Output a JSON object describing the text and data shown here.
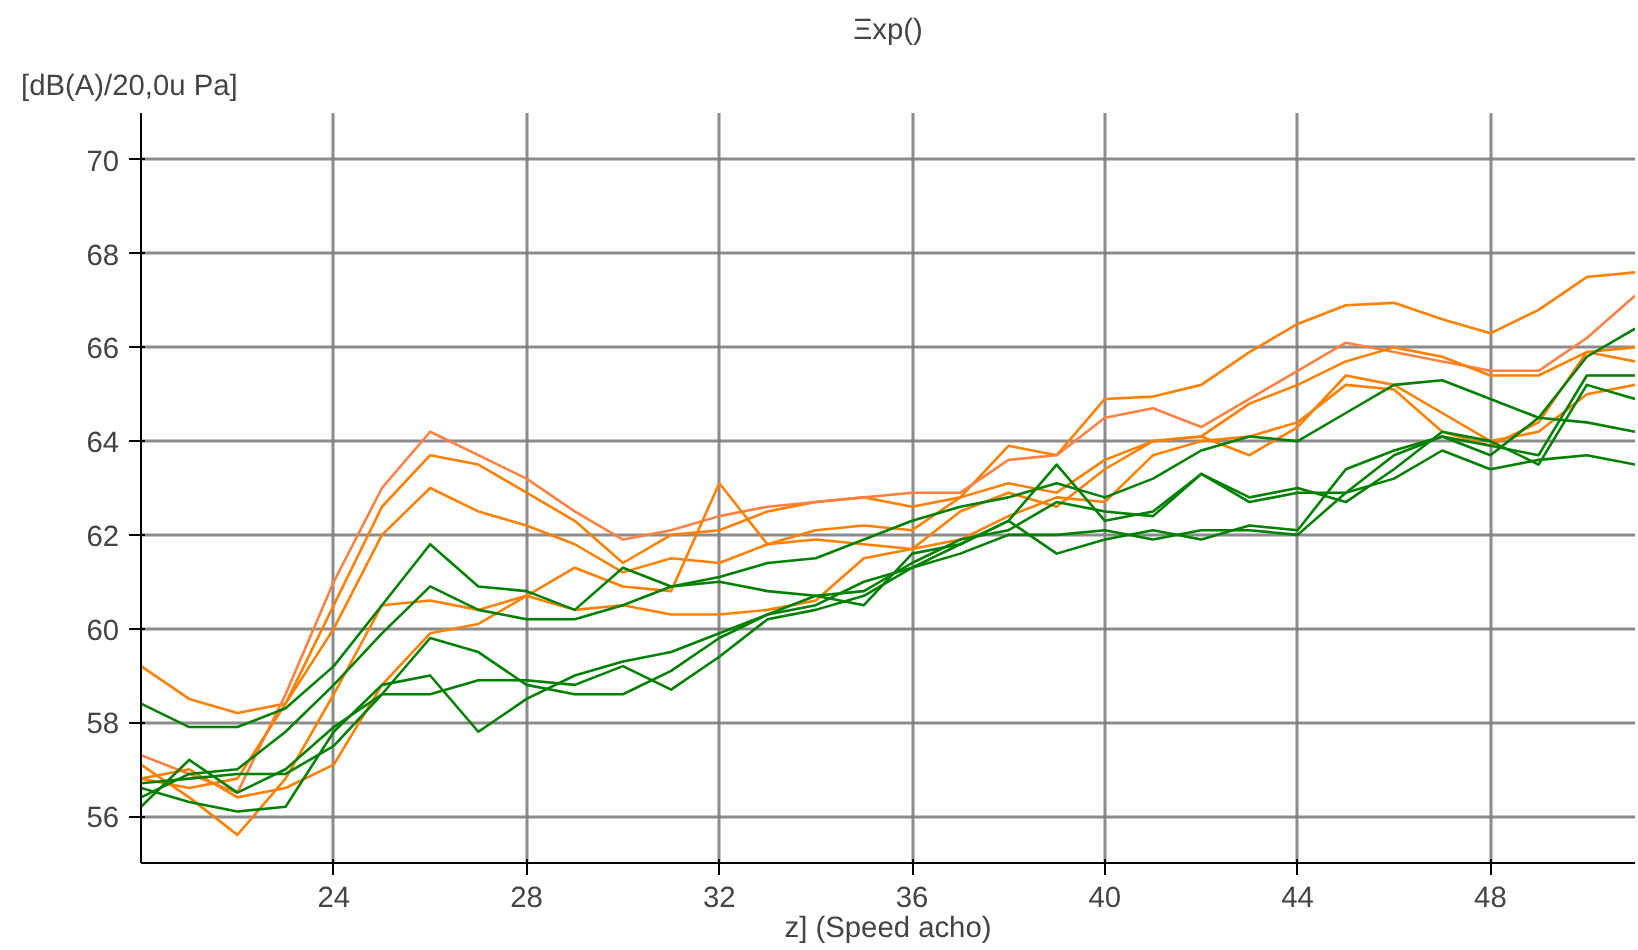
{
  "chart_data": {
    "type": "line",
    "title": "Ξxp()",
    "ylabel": "[dB(A)/20,0u Pa]",
    "xlabel": "z] (Speed acho)",
    "x": [
      20,
      21,
      22,
      23,
      24,
      25,
      26,
      27,
      28,
      29,
      30,
      31,
      32,
      33,
      34,
      35,
      36,
      37,
      38,
      39,
      40,
      41,
      42,
      43,
      44,
      45,
      46,
      47,
      48,
      49,
      50,
      51
    ],
    "xlim": [
      20,
      51
    ],
    "xticks": [
      24,
      28,
      32,
      36,
      40,
      44,
      48
    ],
    "ylim": [
      55,
      71
    ],
    "yticks": [
      56,
      58,
      60,
      62,
      64,
      66,
      68,
      70
    ],
    "grid": true,
    "line_style": "solid",
    "series": [
      {
        "color": "#ff8000",
        "values": [
          59.2,
          58.5,
          58.2,
          58.4,
          60.5,
          62.6,
          63.7,
          63.5,
          62.9,
          62.3,
          61.4,
          62.0,
          62.1,
          62.5,
          62.7,
          62.8,
          62.6,
          62.8,
          63.9,
          63.7,
          64.9,
          64.95,
          65.2,
          65.9,
          66.5,
          66.9,
          66.95,
          66.6,
          66.3,
          66.8,
          67.5,
          67.6
        ]
      },
      {
        "color": "#ff8040",
        "values": [
          57.3,
          56.9,
          56.5,
          58.6,
          61.0,
          63.0,
          64.2,
          63.7,
          63.2,
          62.5,
          61.9,
          62.1,
          62.4,
          62.6,
          62.7,
          62.8,
          62.9,
          62.9,
          63.6,
          63.7,
          64.5,
          64.7,
          64.3,
          64.9,
          65.5,
          66.1,
          65.9,
          65.7,
          65.5,
          65.5,
          66.2,
          67.1
        ]
      },
      {
        "color": "#ff8000",
        "values": [
          56.8,
          56.6,
          56.8,
          58.4,
          60.0,
          62.0,
          63.0,
          62.5,
          62.2,
          61.8,
          61.2,
          61.5,
          61.4,
          61.8,
          62.1,
          62.2,
          62.1,
          62.8,
          63.1,
          62.9,
          63.6,
          64.0,
          64.1,
          64.8,
          65.2,
          65.7,
          66.0,
          65.8,
          65.4,
          65.4,
          65.9,
          65.7
        ]
      },
      {
        "color": "#ff8000",
        "values": [
          57.1,
          56.4,
          55.6,
          56.8,
          58.6,
          60.5,
          60.6,
          60.4,
          60.7,
          61.3,
          60.9,
          60.8,
          63.1,
          61.8,
          61.9,
          61.8,
          61.7,
          62.5,
          62.9,
          62.6,
          63.4,
          64.0,
          64.1,
          63.7,
          64.3,
          65.4,
          65.2,
          64.6,
          64.0,
          64.2,
          65.0,
          65.2
        ]
      },
      {
        "color": "#ff8000",
        "values": [
          56.8,
          57.0,
          56.4,
          56.6,
          57.1,
          58.8,
          59.9,
          60.1,
          60.7,
          60.4,
          60.5,
          60.3,
          60.3,
          60.4,
          60.6,
          61.5,
          61.7,
          61.9,
          62.4,
          62.8,
          62.7,
          63.7,
          64.0,
          64.1,
          64.4,
          65.2,
          65.1,
          64.2,
          63.9,
          64.4,
          65.9,
          66.0
        ]
      },
      {
        "color": "#008000",
        "values": [
          58.4,
          57.9,
          57.9,
          58.3,
          59.2,
          60.5,
          61.8,
          60.9,
          60.8,
          60.4,
          61.3,
          60.9,
          61.0,
          60.8,
          60.7,
          60.5,
          61.6,
          61.8,
          62.3,
          63.5,
          62.3,
          62.5,
          63.3,
          62.8,
          63.0,
          62.7,
          63.4,
          64.2,
          64.0,
          63.5,
          65.2,
          64.9
        ]
      },
      {
        "color": "#008000",
        "values": [
          56.4,
          56.9,
          57.0,
          57.8,
          58.8,
          59.9,
          60.9,
          60.4,
          60.2,
          60.2,
          60.5,
          60.9,
          61.1,
          61.4,
          61.5,
          61.9,
          62.3,
          62.6,
          62.8,
          63.1,
          62.8,
          63.2,
          63.8,
          64.1,
          64.0,
          64.6,
          65.2,
          65.3,
          64.9,
          64.5,
          65.8,
          66.4
        ]
      },
      {
        "color": "#008000",
        "values": [
          56.2,
          57.2,
          56.5,
          57.0,
          57.9,
          58.6,
          59.8,
          59.5,
          58.8,
          58.6,
          58.6,
          59.1,
          59.8,
          60.3,
          60.7,
          60.8,
          61.4,
          61.9,
          62.1,
          62.7,
          62.5,
          62.4,
          63.3,
          62.7,
          62.9,
          62.9,
          63.7,
          64.1,
          63.9,
          63.7,
          65.4,
          65.4
        ]
      },
      {
        "color": "#008000",
        "values": [
          56.6,
          56.3,
          56.1,
          56.2,
          57.8,
          58.8,
          59.0,
          57.8,
          58.5,
          59.0,
          59.3,
          59.5,
          59.9,
          60.3,
          60.5,
          61.0,
          61.3,
          61.8,
          62.3,
          61.6,
          61.9,
          62.1,
          61.9,
          62.2,
          62.1,
          63.4,
          63.8,
          64.1,
          63.7,
          64.5,
          64.4,
          64.2
        ]
      },
      {
        "color": "#008000",
        "values": [
          56.7,
          56.8,
          56.9,
          56.9,
          57.5,
          58.6,
          58.6,
          58.9,
          58.9,
          58.8,
          59.2,
          58.7,
          59.4,
          60.2,
          60.4,
          60.7,
          61.3,
          61.6,
          62.0,
          62.0,
          62.1,
          61.9,
          62.1,
          62.1,
          62.0,
          62.9,
          63.2,
          63.8,
          63.4,
          63.6,
          63.7,
          63.5
        ]
      }
    ]
  }
}
